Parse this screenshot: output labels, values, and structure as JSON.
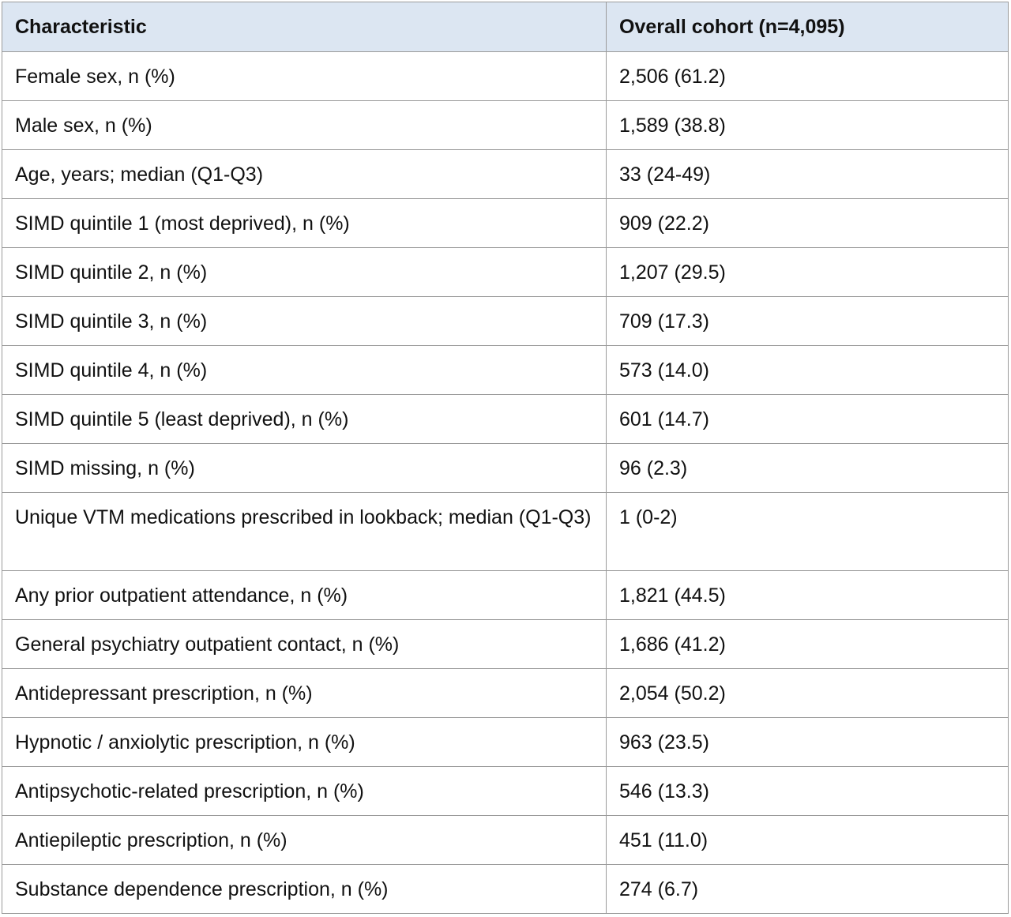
{
  "table": {
    "headers": [
      "Characteristic",
      "Overall cohort (n=4,095)"
    ],
    "rows": [
      {
        "characteristic": "Female sex, n (%)",
        "value": "2,506 (61.2)"
      },
      {
        "characteristic": "Male sex, n (%)",
        "value": "1,589 (38.8)"
      },
      {
        "characteristic": "Age, years; median (Q1-Q3)",
        "value": "33 (24-49)"
      },
      {
        "characteristic": "SIMD quintile 1 (most deprived), n (%)",
        "value": "909 (22.2)"
      },
      {
        "characteristic": "SIMD quintile 2, n (%)",
        "value": "1,207 (29.5)"
      },
      {
        "characteristic": "SIMD quintile 3, n (%)",
        "value": "709 (17.3)"
      },
      {
        "characteristic": "SIMD quintile 4, n (%)",
        "value": "573 (14.0)"
      },
      {
        "characteristic": "SIMD quintile 5 (least deprived), n (%)",
        "value": "601 (14.7)"
      },
      {
        "characteristic": "SIMD missing, n (%)",
        "value": "96 (2.3)"
      },
      {
        "characteristic": "Unique VTM medications prescribed in lookback; median (Q1-Q3)",
        "value": "1 (0-2)"
      },
      {
        "characteristic": "Any prior outpatient attendance, n (%)",
        "value": "1,821 (44.5)"
      },
      {
        "characteristic": "General psychiatry outpatient contact, n (%)",
        "value": "1,686 (41.2)"
      },
      {
        "characteristic": "Antidepressant prescription, n (%)",
        "value": "2,054 (50.2)"
      },
      {
        "characteristic": "Hypnotic / anxiolytic prescription, n (%)",
        "value": "963 (23.5)"
      },
      {
        "characteristic": "Antipsychotic-related prescription, n (%)",
        "value": "546 (13.3)"
      },
      {
        "characteristic": "Antiepileptic prescription, n (%)",
        "value": "451 (11.0)"
      },
      {
        "characteristic": "Substance dependence prescription, n (%)",
        "value": "274 (6.7)"
      }
    ]
  },
  "colors": {
    "header_background": "#dce6f2",
    "border": "#9a9a9a"
  }
}
